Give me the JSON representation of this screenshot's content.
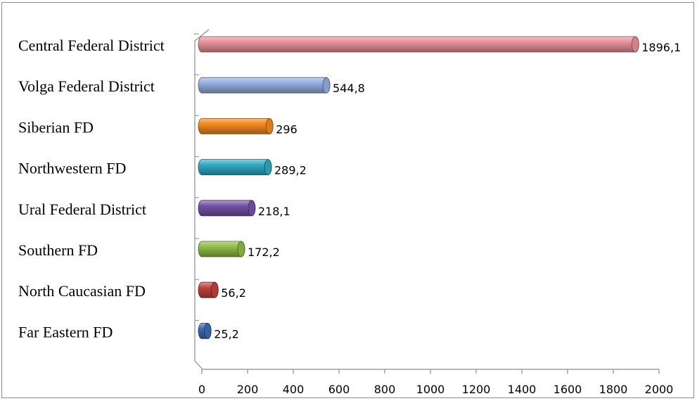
{
  "chart_data": {
    "type": "bar",
    "orientation": "horizontal",
    "style": "3d-cylinder",
    "categories": [
      "Central Federal District",
      "Volga Federal District",
      "Siberian FD",
      "Northwestern FD",
      "Ural Federal District",
      "Southern FD",
      "North Caucasian FD",
      "Far Eastern FD"
    ],
    "values": [
      1896.1,
      544.8,
      296,
      289.2,
      218.1,
      172.2,
      56.2,
      25.2
    ],
    "value_labels": [
      "1896,1",
      "544,8",
      "296",
      "289,2",
      "218,1",
      "172,2",
      "56,2",
      "25,2"
    ],
    "colors": [
      "#e8909a",
      "#93aee0",
      "#f2891f",
      "#31a9c4",
      "#7453a4",
      "#8fbc45",
      "#c0423e",
      "#3e6bb0"
    ],
    "title": "",
    "xlabel": "",
    "ylabel": "",
    "xlim": [
      0,
      2000
    ],
    "xticks": [
      0,
      200,
      400,
      600,
      800,
      1000,
      1200,
      1400,
      1600,
      1800,
      2000
    ],
    "grid": false,
    "legend": "none"
  }
}
